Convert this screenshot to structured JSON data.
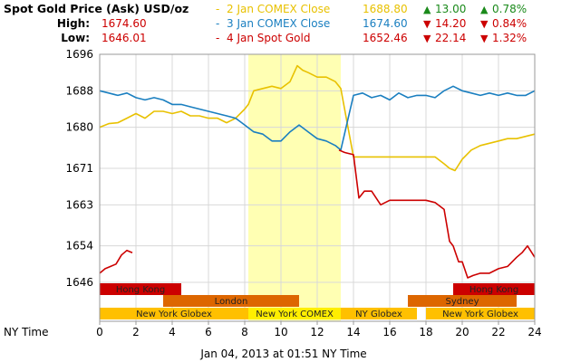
{
  "header": {
    "title": "Spot Gold Price (Ask) USD/oz",
    "high_label": "High:",
    "high_value": "1674.60",
    "low_label": "Low:",
    "low_value": "1646.01"
  },
  "legend": [
    {
      "dash": "-",
      "name": "2 Jan COMEX Close",
      "value": "1688.80",
      "arrow": "▲",
      "change": "13.00",
      "arrow2": "▲",
      "pct": "0.78%",
      "color": "#e8c100",
      "chg_color": "#1a8a1a"
    },
    {
      "dash": "-",
      "name": "3 Jan COMEX Close",
      "value": "1674.60",
      "arrow": "▼",
      "change": "14.20",
      "arrow2": "▼",
      "pct": "0.84%",
      "color": "#1a7fc0",
      "chg_color": "#cc0000"
    },
    {
      "dash": "-",
      "name": "4 Jan Spot Gold",
      "value": "1652.46",
      "arrow": "▼",
      "change": "22.14",
      "arrow2": "▼",
      "pct": "1.32%",
      "color": "#cc0000",
      "chg_color": "#cc0000"
    }
  ],
  "footer": {
    "x_axis_label": "NY Time",
    "timestamp": "Jan 04, 2013 at 01:51 NY Time"
  },
  "colors": {
    "jan2": "#e8c100",
    "jan3": "#1a7fc0",
    "jan4": "#cc0000",
    "highlight": "#ffffb3",
    "grid": "#d8d8d8",
    "sess_hk": "#cc0000",
    "sess_london": "#dd6600",
    "sess_ny": "#ffc000",
    "sess_ny_comex": "#ffee00"
  },
  "chart_data": {
    "type": "line",
    "xlabel": "NY Time",
    "ylabel": "",
    "xlim": [
      0,
      24
    ],
    "ylim": [
      1643,
      1696
    ],
    "x_ticks": [
      0,
      2,
      4,
      6,
      8,
      10,
      12,
      14,
      16,
      18,
      20,
      22,
      24
    ],
    "y_ticks": [
      1646,
      1654,
      1663,
      1671,
      1680,
      1688,
      1696
    ],
    "grid": true,
    "highlight_band": [
      8.2,
      13.3
    ],
    "sessions": [
      {
        "name": "Hong Kong",
        "start": 0,
        "end": 4.5,
        "row": 0,
        "color_key": "sess_hk"
      },
      {
        "name": "Hong Kong",
        "start": 19.5,
        "end": 24,
        "row": 0,
        "color_key": "sess_hk"
      },
      {
        "name": "London",
        "start": 3.5,
        "end": 11,
        "row": 1,
        "color_key": "sess_london"
      },
      {
        "name": "Sydney",
        "start": 17,
        "end": 23,
        "row": 1,
        "color_key": "sess_london"
      },
      {
        "name": "New York Globex",
        "start": 0,
        "end": 8.2,
        "row": 2,
        "color_key": "sess_ny"
      },
      {
        "name": "New York COMEX",
        "start": 8.2,
        "end": 13.3,
        "row": 2,
        "color_key": "sess_ny_comex"
      },
      {
        "name": "NY Globex",
        "start": 13.3,
        "end": 17.5,
        "row": 2,
        "color_key": "sess_ny"
      },
      {
        "name": "New York Globex",
        "start": 18,
        "end": 24,
        "row": 2,
        "color_key": "sess_ny"
      }
    ],
    "series": [
      {
        "name": "2 Jan COMEX Close",
        "color_key": "jan2",
        "x": [
          0,
          0.5,
          1,
          1.5,
          2,
          2.5,
          3,
          3.5,
          4,
          4.5,
          5,
          5.5,
          6,
          6.5,
          7,
          7.5,
          8,
          8.2,
          8.5,
          9,
          9.5,
          10,
          10.5,
          10.9,
          11.2,
          11.5,
          12,
          12.5,
          13,
          13.3,
          14,
          15,
          16,
          17,
          18,
          18.5,
          19,
          19.3,
          19.6,
          20,
          20.5,
          21,
          21.5,
          22,
          22.5,
          23,
          23.5,
          24
        ],
        "y": [
          1680,
          1680.8,
          1681,
          1682,
          1683,
          1682,
          1683.5,
          1683.5,
          1683,
          1683.5,
          1682.5,
          1682.5,
          1682,
          1682,
          1681,
          1682,
          1684,
          1685,
          1688,
          1688.5,
          1689,
          1688.5,
          1690,
          1693.5,
          1692.5,
          1692,
          1691,
          1691,
          1690,
          1688.5,
          1673.5,
          1673.5,
          1673.5,
          1673.5,
          1673.5,
          1673.5,
          1672,
          1671,
          1670.5,
          1673,
          1675,
          1676,
          1676.5,
          1677,
          1677.5,
          1677.5,
          1678,
          1678.5
        ]
      },
      {
        "name": "3 Jan COMEX Close",
        "color_key": "jan3",
        "x": [
          0,
          0.5,
          1,
          1.5,
          2,
          2.5,
          3,
          3.5,
          4,
          4.5,
          5,
          5.5,
          6,
          6.5,
          7,
          7.5,
          8,
          8.5,
          9,
          9.5,
          10,
          10.5,
          11,
          11.5,
          12,
          12.5,
          13,
          13.3,
          14,
          14.5,
          15,
          15.5,
          16,
          16.5,
          17,
          17.5,
          18,
          18.5,
          19,
          19.5,
          20,
          20.5,
          21,
          21.5,
          22,
          22.5,
          23,
          23.5,
          24
        ],
        "y": [
          1688,
          1687.5,
          1687,
          1687.5,
          1686.5,
          1686,
          1686.5,
          1686,
          1685,
          1685,
          1684.5,
          1684,
          1683.5,
          1683,
          1682.5,
          1682,
          1680.5,
          1679,
          1678.5,
          1677,
          1677,
          1679,
          1680.5,
          1679,
          1677.5,
          1677,
          1676,
          1675,
          1687,
          1687.5,
          1686.5,
          1687,
          1686,
          1687.5,
          1686.5,
          1687,
          1687,
          1686.5,
          1688,
          1689,
          1688,
          1687.5,
          1687,
          1687.5,
          1687,
          1687.5,
          1687,
          1687,
          1688
        ]
      },
      {
        "name": "4 Jan Spot Gold",
        "color_key": "jan4",
        "x": [
          0,
          0.3,
          0.6,
          0.9,
          1.2,
          1.5,
          1.8,
          13.2,
          13.5,
          14,
          14.3,
          14.6,
          15,
          15.5,
          16,
          16.5,
          17,
          17.5,
          18,
          18.5,
          19,
          19.3,
          19.5,
          19.8,
          20,
          20.3,
          20.6,
          21,
          21.5,
          22,
          22.5,
          23,
          23.3,
          23.6,
          24
        ],
        "y": [
          1648,
          1649,
          1649.5,
          1650,
          1652,
          1653,
          1652.5,
          1675,
          1674.5,
          1674,
          1664.5,
          1666,
          1666,
          1663,
          1664,
          1664,
          1664,
          1664,
          1664,
          1663.5,
          1662,
          1655,
          1654,
          1650.5,
          1650.5,
          1647,
          1647.5,
          1648,
          1648,
          1649,
          1649.5,
          1651.5,
          1652.5,
          1654,
          1651.5
        ]
      }
    ]
  }
}
